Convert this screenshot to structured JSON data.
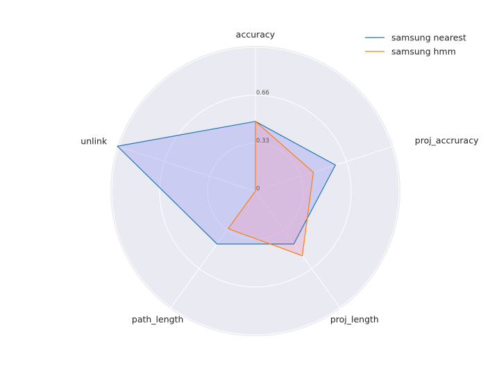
{
  "chart_data": {
    "type": "radar",
    "axes": [
      "accuracy",
      "proj_accruracy",
      "proj_length",
      "path_length",
      "unlink"
    ],
    "rticks": [
      0,
      0.33,
      0.66
    ],
    "rlim": [
      0,
      1.0
    ],
    "grid": true,
    "legend_position": "top-right",
    "series": [
      {
        "name": "samsung nearest",
        "color": "#1f77b4",
        "fill": "#a7a8f2",
        "values": [
          0.48,
          0.58,
          0.45,
          0.45,
          1.0
        ]
      },
      {
        "name": "samsung hmm",
        "color": "#ff7f0e",
        "fill": "#e7a9c9",
        "values": [
          0.48,
          0.42,
          0.55,
          0.32,
          0.0
        ]
      }
    ]
  }
}
